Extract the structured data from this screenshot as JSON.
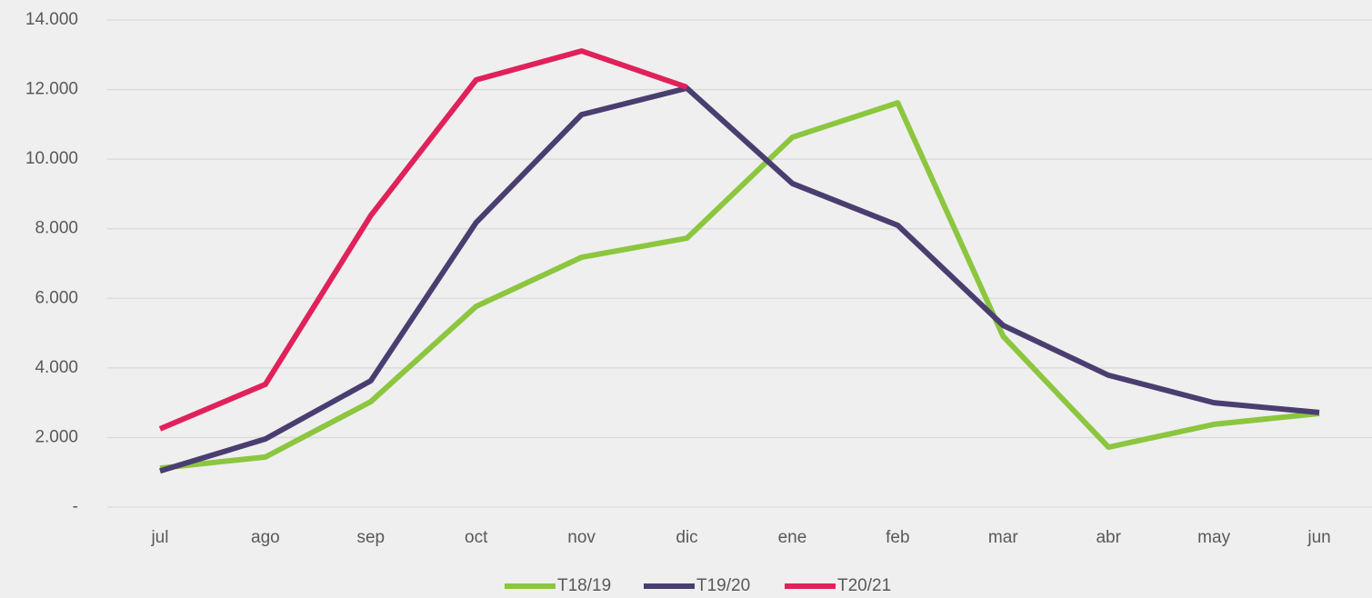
{
  "chart_data": {
    "type": "line",
    "categories": [
      "jul",
      "ago",
      "sep",
      "oct",
      "nov",
      "dic",
      "ene",
      "feb",
      "mar",
      "abr",
      "may",
      "jun"
    ],
    "series": [
      {
        "name": "T18/19",
        "color": "#8cc63f",
        "values": [
          1120,
          1440,
          3030,
          5770,
          7180,
          7730,
          10630,
          11620,
          4910,
          1720,
          2380,
          2690
        ]
      },
      {
        "name": "T19/20",
        "color": "#4a3e70",
        "values": [
          1040,
          1960,
          3630,
          8180,
          11280,
          12040,
          9300,
          8100,
          5220,
          3790,
          3000,
          2720
        ]
      },
      {
        "name": "T20/21",
        "color": "#e0215a",
        "values": [
          2250,
          3530,
          8380,
          12280,
          13110,
          12070,
          null,
          null,
          null,
          null,
          null,
          null
        ]
      }
    ],
    "ylim": [
      0,
      14000
    ],
    "yticks": [
      {
        "value": 0,
        "label": "-"
      },
      {
        "value": 2000,
        "label": "2.000"
      },
      {
        "value": 4000,
        "label": "4.000"
      },
      {
        "value": 6000,
        "label": "6.000"
      },
      {
        "value": 8000,
        "label": "8.000"
      },
      {
        "value": 10000,
        "label": "10.000"
      },
      {
        "value": 12000,
        "label": "12.000"
      },
      {
        "value": 14000,
        "label": "14.000"
      }
    ],
    "grid": true,
    "legend": "bottom"
  }
}
